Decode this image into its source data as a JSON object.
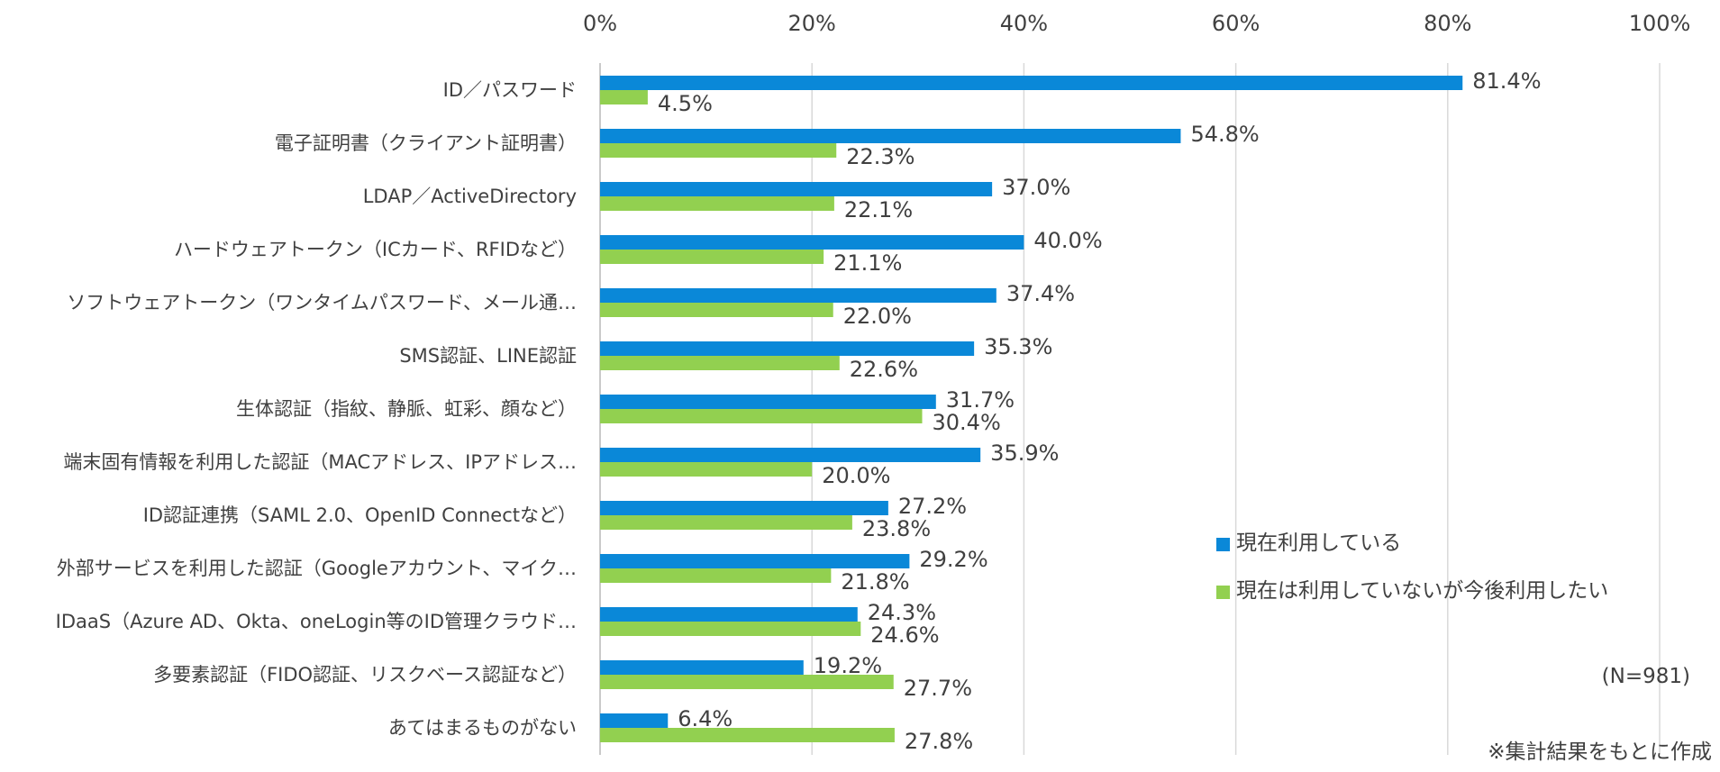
{
  "chart_data": {
    "type": "bar",
    "orientation": "horizontal",
    "categories": [
      "ID／パスワード",
      "電子証明書（クライアント証明書）",
      "LDAP／ActiveDirectory",
      "ハードウェアトークン（ICカード、RFIDなど）",
      "ソフトウェアトークン（ワンタイムパスワード、メール通…",
      "SMS認証、LINE認証",
      "生体認証（指紋、静脈、虹彩、顔など）",
      "端末固有情報を利用した認証（MACアドレス、IPアドレス…",
      "ID認証連携（SAML 2.0、OpenID Connectなど）",
      "外部サービスを利用した認証（Googleアカウント、マイク…",
      "IDaaS（Azure AD、Okta、oneLogin等のID管理クラウド…",
      "多要素認証（FIDO認証、リスクベース認証など）",
      "あてはまるものがない"
    ],
    "series": [
      {
        "name": "現在利用している",
        "color": "#0A88D8",
        "values": [
          81.4,
          54.8,
          37.0,
          40.0,
          37.4,
          35.3,
          31.7,
          35.9,
          27.2,
          29.2,
          24.3,
          19.2,
          6.4
        ],
        "labels": [
          "81.4%",
          "54.8%",
          "37.0%",
          "40.0%",
          "37.4%",
          "35.3%",
          "31.7%",
          "35.9%",
          "27.2%",
          "29.2%",
          "24.3%",
          "19.2%",
          "6.4%"
        ]
      },
      {
        "name": "現在は利用していないが今後利用したい",
        "color": "#92D050",
        "values": [
          4.5,
          22.3,
          22.1,
          21.1,
          22.0,
          22.6,
          30.4,
          20.0,
          23.8,
          21.8,
          24.6,
          27.7,
          27.8
        ],
        "labels": [
          "4.5%",
          "22.3%",
          "22.1%",
          "21.1%",
          "22.0%",
          "22.6%",
          "30.4%",
          "20.0%",
          "23.8%",
          "21.8%",
          "24.6%",
          "27.7%",
          "27.8%"
        ]
      }
    ],
    "xlim": [
      0,
      100
    ],
    "ticks": [
      0,
      20,
      40,
      60,
      80,
      100
    ],
    "tick_labels": [
      "0%",
      "20%",
      "40%",
      "60%",
      "80%",
      "100%"
    ],
    "axis_position": "top",
    "grid": true,
    "legend_position": "right",
    "annotations": [
      "(N=981)",
      "※集計結果をもとに作成"
    ]
  }
}
